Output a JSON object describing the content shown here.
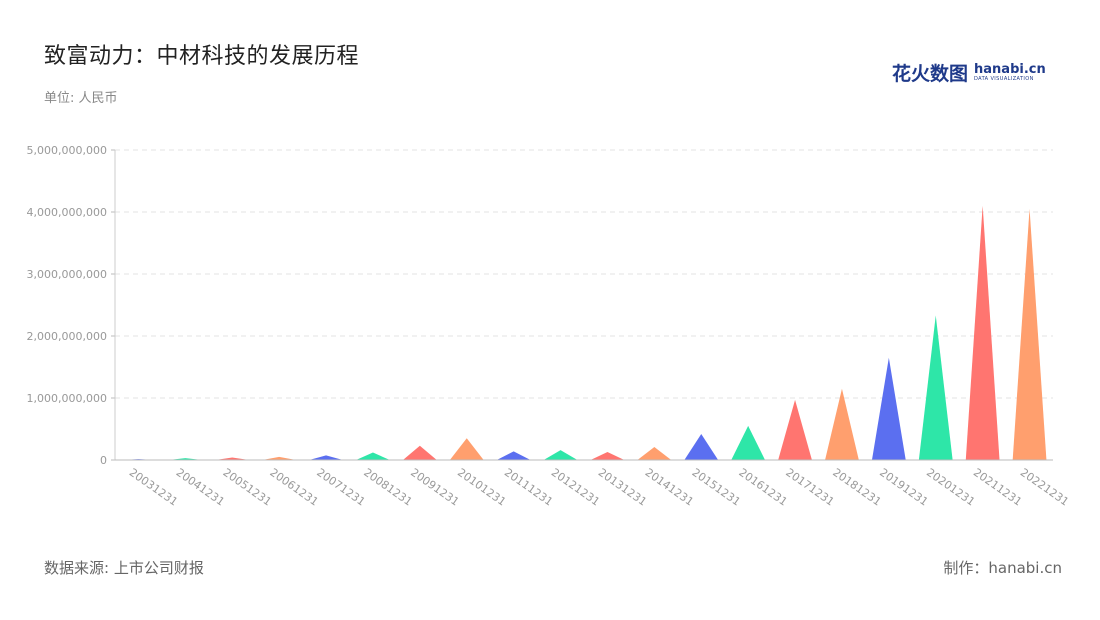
{
  "header": {
    "title": "致富动力：中材科技的发展历程",
    "unit": "单位: 人民币"
  },
  "brand": {
    "cn": "花火数图",
    "en": "hanabi.cn",
    "tagline": "DATA VISUALIZATION"
  },
  "footer": {
    "source": "数据来源: 上市公司财报",
    "maker": "制作：hanabi.cn"
  },
  "colors": {
    "blue": "#5b6ff0",
    "green": "#2ee6a8",
    "red": "#ff7570",
    "orange": "#ff9f6e"
  },
  "chart_data": {
    "type": "bar",
    "title": "致富动力：中材科技的发展历程",
    "ylabel": "单位: 人民币",
    "xlabel": "",
    "ylim": [
      0,
      5000000000
    ],
    "yticks": [
      0,
      1000000000,
      2000000000,
      3000000000,
      4000000000,
      5000000000
    ],
    "ytick_labels": [
      "0",
      "1,000,000,000",
      "2,000,000,000",
      "3,000,000,000",
      "4,000,000,000",
      "5,000,000,000"
    ],
    "grid": true,
    "categories": [
      "20031231",
      "20041231",
      "20051231",
      "20061231",
      "20071231",
      "20081231",
      "20091231",
      "20101231",
      "20111231",
      "20121231",
      "20131231",
      "20141231",
      "20151231",
      "20161231",
      "20171231",
      "20181231",
      "20191231",
      "20201231",
      "20211231",
      "20221231"
    ],
    "values": [
      15000000,
      30000000,
      40000000,
      50000000,
      75000000,
      120000000,
      230000000,
      350000000,
      140000000,
      160000000,
      130000000,
      210000000,
      420000000,
      550000000,
      970000000,
      1150000000,
      1650000000,
      2330000000,
      4100000000,
      4050000000
    ],
    "bar_colors": [
      "#5b6ff0",
      "#2ee6a8",
      "#ff7570",
      "#ff9f6e",
      "#5b6ff0",
      "#2ee6a8",
      "#ff7570",
      "#ff9f6e",
      "#5b6ff0",
      "#2ee6a8",
      "#ff7570",
      "#ff9f6e",
      "#5b6ff0",
      "#2ee6a8",
      "#ff7570",
      "#ff9f6e",
      "#5b6ff0",
      "#2ee6a8",
      "#ff7570",
      "#ff9f6e"
    ],
    "bar_shape": "triangle"
  }
}
